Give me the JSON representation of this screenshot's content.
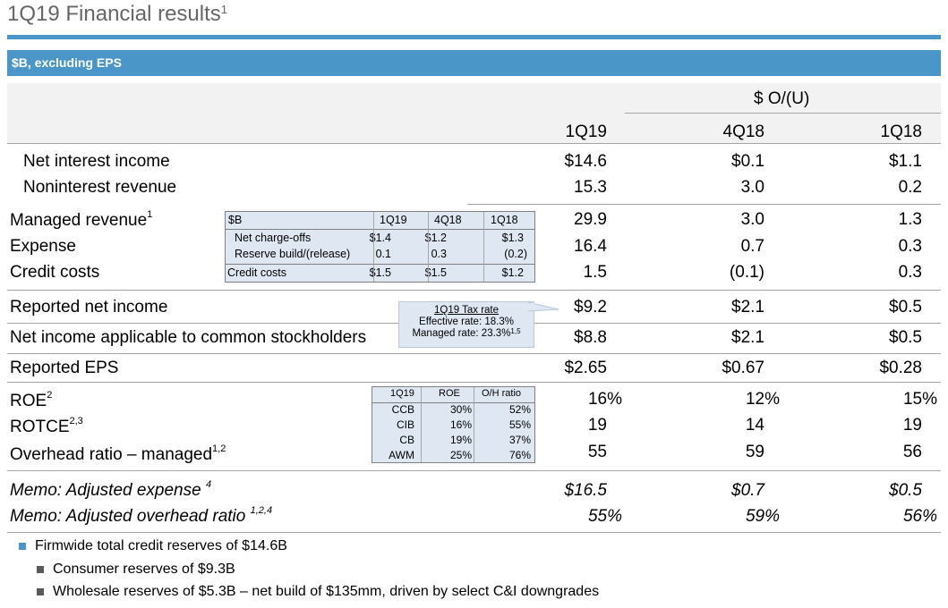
{
  "title": {
    "text": "1Q19 Financial results",
    "sup": "1"
  },
  "banner": "$B, excluding EPS",
  "header": {
    "group": "$ O/(U)",
    "col_1q19": "1Q19",
    "col_4q18": "4Q18",
    "col_1q18": "1Q18"
  },
  "rows": {
    "nii": {
      "label": "Net interest income",
      "v1": "$14.6",
      "v2": "$0.1",
      "v3": "$1.1"
    },
    "nonint": {
      "label": "Noninterest revenue",
      "v1": "15.3",
      "v2": "3.0",
      "v3": "0.2"
    },
    "managed": {
      "label": "Managed revenue",
      "sup": "1",
      "v1": "29.9",
      "v2": "3.0",
      "v3": "1.3"
    },
    "expense": {
      "label": "Expense",
      "v1": "16.4",
      "v2": "0.7",
      "v3": "0.3"
    },
    "credit": {
      "label": "Credit costs",
      "v1": "1.5",
      "v2": "(0.1)",
      "v3": "0.3"
    },
    "reported_ni": {
      "label": "Reported net income",
      "v1": "$9.2",
      "v2": "$2.1",
      "v3": "$0.5"
    },
    "ni_common": {
      "label": "Net income applicable to common stockholders",
      "v1": "$8.8",
      "v2": "$2.1",
      "v3": "$0.5"
    },
    "eps": {
      "label": "Reported EPS",
      "v1": "$2.65",
      "v2": "$0.67",
      "v3": "$0.28"
    },
    "roe": {
      "label": "ROE",
      "sup": "2",
      "v1": "16%",
      "v2": "12%",
      "v3": "15%"
    },
    "rotce": {
      "label": "ROTCE",
      "sup": "2,3",
      "v1": "19",
      "v2": "14",
      "v3": "19"
    },
    "overhead": {
      "label": "Overhead ratio – managed",
      "sup": "1,2",
      "v1": "55",
      "v2": "59",
      "v3": "56"
    },
    "memo_exp": {
      "label": "Memo: Adjusted expense",
      "sup": "4",
      "v1": "$16.5",
      "v2": "$0.7",
      "v3": "$0.5"
    },
    "memo_ohr": {
      "label": "Memo: Adjusted overhead ratio",
      "sup": "1,2,4",
      "v1": "55%",
      "v2": "59%",
      "v3": "56%"
    }
  },
  "credit_table": {
    "headers": [
      "$B",
      "1Q19",
      "4Q18",
      "1Q18"
    ],
    "rows": [
      [
        "Net charge-offs",
        "$1.4",
        "$1.2",
        "$1.3"
      ],
      [
        "Reserve build/(release)",
        "0.1",
        "0.3",
        "(0.2)"
      ],
      [
        "Credit costs",
        "$1.5",
        "$1.5",
        "$1.2"
      ]
    ]
  },
  "tax_callout": {
    "title": "1Q19 Tax rate",
    "effective": "Effective rate: 18.3%",
    "managed": "Managed rate: 23.3%",
    "managed_sup": "1,5"
  },
  "roe_table": {
    "headers": [
      "1Q19",
      "ROE",
      "O/H ratio"
    ],
    "rows": [
      [
        "CCB",
        "30%",
        "52%"
      ],
      [
        "CIB",
        "16%",
        "55%"
      ],
      [
        "CB",
        "19%",
        "37%"
      ],
      [
        "AWM",
        "25%",
        "76%"
      ]
    ]
  },
  "bullets": {
    "main": "Firmwide total credit reserves of $14.6B",
    "sub1": "Consumer reserves of $9.3B",
    "sub2": "Wholesale reserves of $5.3B – net build of $135mm, driven by select C&I downgrades"
  },
  "colors": {
    "accent": "#4a96c8",
    "inset_bg": "#dfe7f2",
    "bullet_main": "#4a96c8",
    "bullet_sub": "#595959"
  }
}
